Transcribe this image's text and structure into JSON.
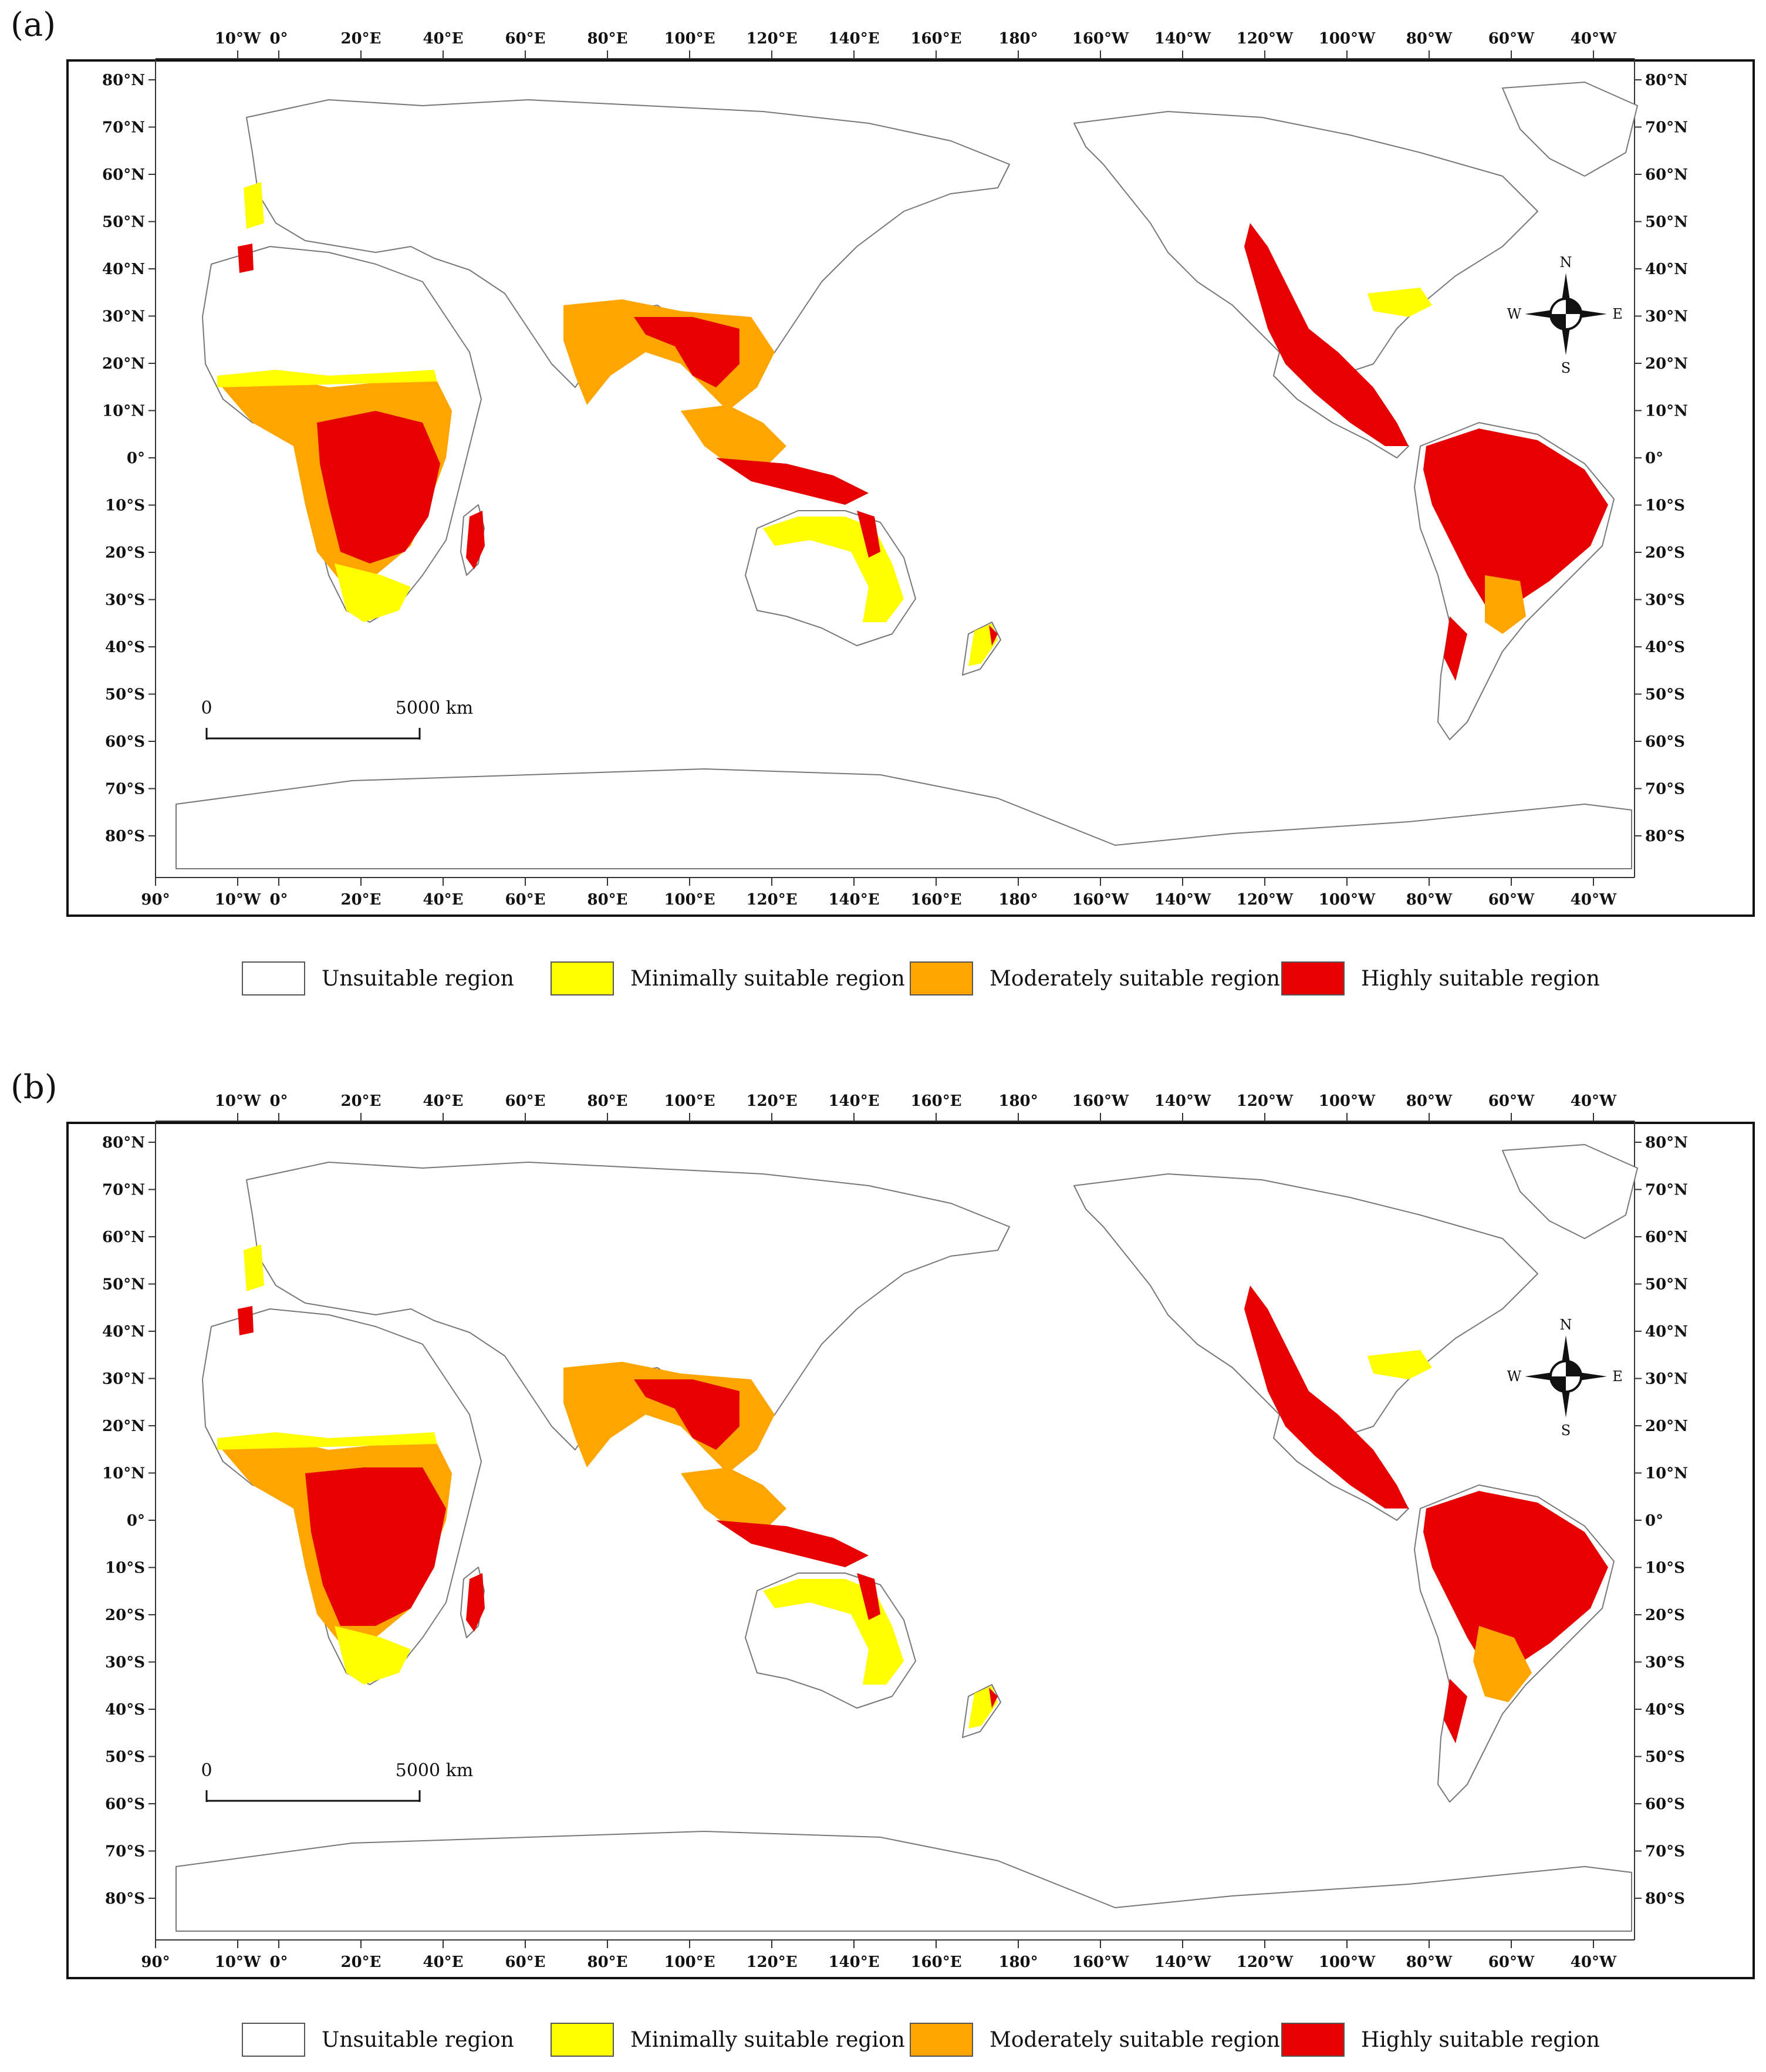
{
  "panels": [
    {
      "label": "(a)"
    },
    {
      "label": "(b)"
    }
  ],
  "top_lon_labels": [
    "10°W",
    "0°",
    "20°E",
    "40°E",
    "60°E",
    "80°E",
    "100°E",
    "120°E",
    "140°E",
    "160°E",
    "180°",
    "160°W",
    "140°W",
    "120°W",
    "100°W",
    "80°W",
    "60°W",
    "40°W"
  ],
  "bottom_lon_labels": [
    "90°",
    "10°W",
    "0°",
    "20°E",
    "40°E",
    "60°E",
    "80°E",
    "100°E",
    "120°E",
    "140°E",
    "160°E",
    "180°",
    "160°W",
    "140°W",
    "120°W",
    "100°W",
    "80°W",
    "60°W",
    "40°W"
  ],
  "left_lat_labels": [
    "80°N",
    "70°N",
    "60°N",
    "50°N",
    "40°N",
    "30°N",
    "20°N",
    "10°N",
    "0°",
    "10°S",
    "20°S",
    "30°S",
    "40°S",
    "50°S",
    "60°S",
    "70°S",
    "80°S"
  ],
  "right_lat_labels": [
    "80°N",
    "70°N",
    "60°N",
    "50°N",
    "40°N",
    "30°N",
    "20°N",
    "10°N",
    "0°",
    "10°S",
    "20°S",
    "30°S",
    "40°S",
    "50°S",
    "60°S",
    "70°S",
    "80°S"
  ],
  "scale_bar": {
    "start": "0",
    "end": "5000 km"
  },
  "compass": {
    "n": "N",
    "s": "S",
    "e": "E",
    "w": "W"
  },
  "legend": [
    {
      "label": "Unsuitable region",
      "color": "#ffffff"
    },
    {
      "label": "Minimally suitable region",
      "color": "#ffff00"
    },
    {
      "label": "Moderately suitable region",
      "color": "#ffa500"
    },
    {
      "label": "Highly suitable region",
      "color": "#e60000"
    }
  ],
  "colors": {
    "unsuitable": "#ffffff",
    "minimal": "#ffff00",
    "moderate": "#ffa500",
    "high": "#e60000",
    "outline": "#777777"
  }
}
